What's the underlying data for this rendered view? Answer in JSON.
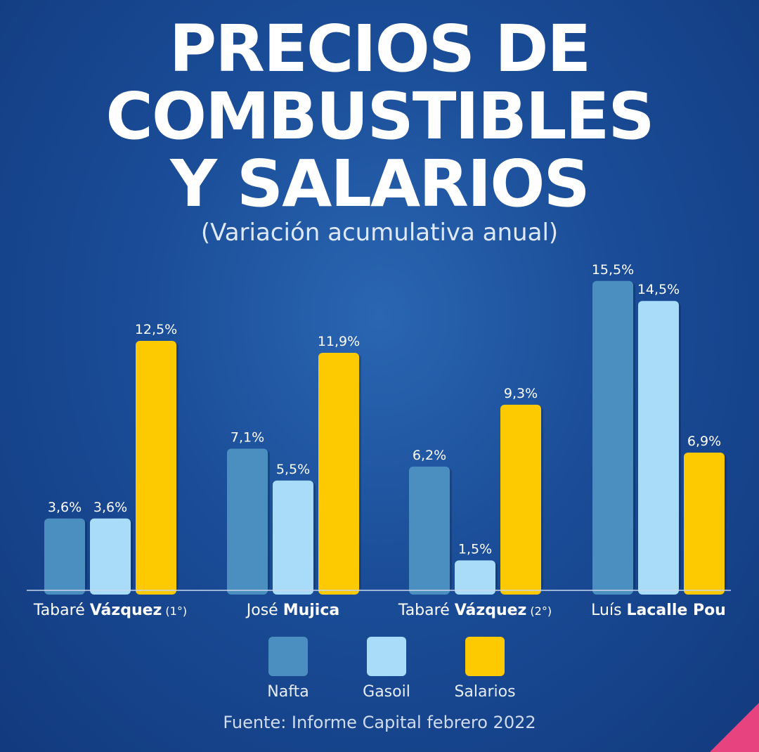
{
  "title_lines": [
    "PRECIOS DE",
    "COMBUSTIBLES",
    "Y SALARIOS"
  ],
  "subtitle": "(Variación acumulativa anual)",
  "source": "Fuente: Informe Capital febrero 2022",
  "colors": {
    "nafta": "#4a8fc0",
    "gasoil": "#a9dcf8",
    "salarios": "#fdc900"
  },
  "chart_data": {
    "type": "bar",
    "title": "PRECIOS DE COMBUSTIBLES Y SALARIOS",
    "subtitle": "(Variación acumulativa anual)",
    "categories": [
      {
        "name_regular": "Tabaré ",
        "name_bold": "Vázquez",
        "suffix": " (1°)"
      },
      {
        "name_regular": "José ",
        "name_bold": "Mujica",
        "suffix": ""
      },
      {
        "name_regular": "Tabaré ",
        "name_bold": "Vázquez",
        "suffix": " (2°)"
      },
      {
        "name_regular": "Luís ",
        "name_bold": "Lacalle Pou",
        "suffix": ""
      }
    ],
    "series": [
      {
        "name": "Nafta",
        "color": "#4a8fc0",
        "values": [
          3.6,
          7.1,
          6.2,
          15.5
        ],
        "labels": [
          "3,6%",
          "7,1%",
          "6,2%",
          "15,5%"
        ]
      },
      {
        "name": "Gasoil",
        "color": "#a9dcf8",
        "values": [
          3.6,
          5.5,
          1.5,
          14.5
        ],
        "labels": [
          "3,6%",
          "5,5%",
          "1,5%",
          "14,5%"
        ]
      },
      {
        "name": "Salarios",
        "color": "#fdc900",
        "values": [
          12.5,
          11.9,
          9.3,
          6.9
        ],
        "labels": [
          "12,5%",
          "11,9%",
          "9,3%",
          "6,9%"
        ]
      }
    ],
    "ylim": [
      0,
      16
    ],
    "grid": false,
    "legend": "bottom"
  }
}
